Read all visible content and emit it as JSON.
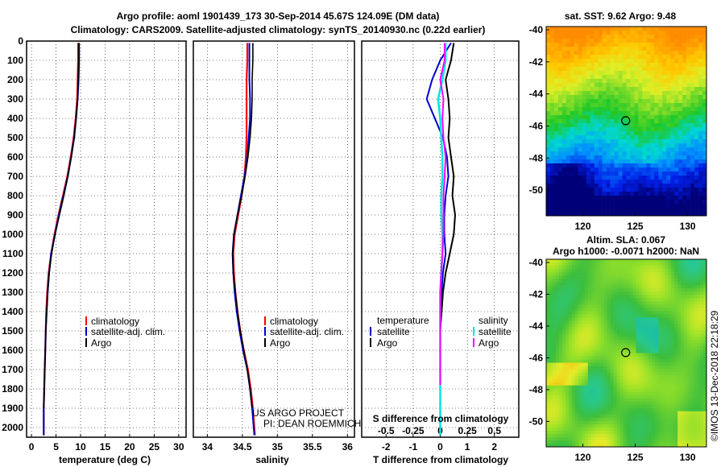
{
  "header": {
    "line1": "Argo profile: aoml 1901439_173 30-Sep-2014 45.67S 124.09E (DM data)",
    "line2": "Climatology: CARS2009. Satellite-adjusted climatology: synTS_20140930.nc (0.22d earlier)"
  },
  "credit": {
    "line1": "US ARGO PROJECT",
    "line2": "PI: DEAN ROEMMICH",
    "imos": "©IMOS 13-Dec-2018 22:18:29"
  },
  "colors": {
    "climatology": "#ff0000",
    "satellite": "#0000cc",
    "argo": "#000000",
    "cyan": "#00e5e5",
    "magenta": "#ff00ff"
  },
  "chart_data": [
    {
      "type": "line",
      "xlabel": "temperature (deg C)",
      "xlim": [
        -1,
        31.5
      ],
      "xticks": [
        "0",
        "5",
        "10",
        "15",
        "20",
        "25",
        "30"
      ],
      "ylim": [
        2050,
        0
      ],
      "yticks": [
        "0",
        "100",
        "200",
        "300",
        "400",
        "500",
        "600",
        "700",
        "800",
        "900",
        "1000",
        "1100",
        "1200",
        "1300",
        "1400",
        "1500",
        "1600",
        "1700",
        "1800",
        "1900",
        "2000"
      ],
      "legend": [
        "climatology",
        "satellite-adj. clim.",
        "Argo"
      ],
      "series": [
        {
          "name": "climatology",
          "x": [
            9.5,
            9.5,
            9.4,
            9.3,
            9.0,
            8.6,
            8.0,
            7.3,
            6.4,
            5.5,
            4.7,
            4.0,
            3.5,
            3.2,
            3.0,
            2.9,
            2.8,
            2.7,
            2.6,
            2.5,
            2.5
          ],
          "y": [
            10,
            100,
            200,
            300,
            400,
            500,
            600,
            700,
            800,
            900,
            1000,
            1100,
            1200,
            1300,
            1400,
            1500,
            1600,
            1700,
            1800,
            1900,
            2040
          ]
        },
        {
          "name": "satellite-adj. clim.",
          "x": [
            9.7,
            9.7,
            9.6,
            9.4,
            9.1,
            8.7,
            8.1,
            7.4,
            6.5,
            5.6,
            4.8,
            4.0,
            3.6,
            3.3,
            3.1,
            2.9,
            2.8,
            2.7,
            2.6,
            2.5,
            2.5
          ],
          "y": [
            10,
            100,
            200,
            300,
            400,
            500,
            600,
            700,
            800,
            900,
            1000,
            1100,
            1200,
            1300,
            1400,
            1500,
            1600,
            1700,
            1800,
            1900,
            2040
          ]
        },
        {
          "name": "Argo",
          "x": [
            9.6,
            9.6,
            9.5,
            9.4,
            9.1,
            8.7,
            8.1,
            7.4,
            6.6,
            5.7,
            4.8,
            4.1,
            3.6,
            3.3,
            3.1,
            2.9,
            2.8,
            2.7,
            2.6,
            2.5
          ],
          "y": [
            10,
            100,
            200,
            300,
            400,
            500,
            600,
            700,
            800,
            900,
            1000,
            1100,
            1200,
            1300,
            1400,
            1500,
            1600,
            1700,
            1800,
            1900
          ]
        }
      ]
    },
    {
      "type": "line",
      "xlabel": "salinity",
      "xlim": [
        33.8,
        36.1
      ],
      "xticks": [
        "34",
        "34.5",
        "35",
        "35.5",
        "36"
      ],
      "ylim": [
        2050,
        0
      ],
      "legend": [
        "climatology",
        "satellite-adj. clim.",
        "Argo"
      ],
      "series": [
        {
          "name": "climatology",
          "x": [
            34.57,
            34.57,
            34.56,
            34.56,
            34.56,
            34.56,
            34.55,
            34.53,
            34.49,
            34.44,
            34.39,
            34.37,
            34.38,
            34.4,
            34.43,
            34.47,
            34.52,
            34.58,
            34.62,
            34.65,
            34.68
          ],
          "y": [
            10,
            100,
            200,
            300,
            400,
            500,
            600,
            700,
            800,
            900,
            1000,
            1100,
            1200,
            1300,
            1400,
            1500,
            1600,
            1700,
            1800,
            1900,
            2040
          ]
        },
        {
          "name": "satellite-adj. clim.",
          "x": [
            34.6,
            34.6,
            34.6,
            34.61,
            34.61,
            34.59,
            34.57,
            34.53,
            34.48,
            34.43,
            34.38,
            34.36,
            34.37,
            34.39,
            34.42,
            34.46,
            34.51,
            34.57,
            34.61,
            34.64,
            34.67
          ],
          "y": [
            10,
            100,
            200,
            300,
            400,
            500,
            600,
            700,
            800,
            900,
            1000,
            1100,
            1200,
            1300,
            1400,
            1500,
            1600,
            1700,
            1800,
            1900,
            2040
          ]
        },
        {
          "name": "Argo",
          "x": [
            34.65,
            34.65,
            34.64,
            34.64,
            34.63,
            34.61,
            34.58,
            34.54,
            34.49,
            34.43,
            34.38,
            34.36,
            34.37,
            34.4,
            34.43,
            34.47,
            34.52,
            34.57,
            34.61,
            34.64
          ],
          "y": [
            10,
            100,
            200,
            300,
            400,
            500,
            600,
            700,
            800,
            900,
            1000,
            1100,
            1200,
            1300,
            1400,
            1500,
            1600,
            1700,
            1800,
            1900
          ]
        }
      ]
    },
    {
      "type": "line",
      "xlabel": "T difference from climatology",
      "xlabel_top": "S difference from climatology",
      "xlim": [
        -2.9,
        2.9
      ],
      "xticks": [
        "-2",
        "-1",
        "0",
        "1",
        "2"
      ],
      "sticks": [
        "-0.5",
        "-0.25",
        "0",
        "0.25",
        "0.5"
      ],
      "ylim": [
        2050,
        0
      ],
      "legend_t_title": "temperature",
      "legend_s_title": "salinity",
      "legend_labels": [
        "satellite",
        "Argo"
      ],
      "series": [
        {
          "name": "temperature satellite",
          "x": [
            0.4,
            0.0,
            -0.3,
            -0.5,
            -0.2,
            0.1,
            0.25,
            0.3,
            0.2,
            0.15,
            0.15,
            0.2,
            0.1,
            0.05,
            0.0,
            0.0,
            0.0,
            0.0,
            0.0,
            0.0
          ],
          "y": [
            10,
            100,
            200,
            300,
            400,
            500,
            600,
            700,
            800,
            900,
            1000,
            1100,
            1200,
            1300,
            1400,
            1500,
            1600,
            1700,
            1800,
            2000
          ]
        },
        {
          "name": "temperature Argo",
          "x": [
            0.5,
            0.4,
            0.2,
            0.3,
            0.35,
            0.3,
            0.4,
            0.5,
            0.45,
            0.55,
            0.5,
            0.35,
            0.2,
            0.1,
            0.05,
            0.0,
            0.0,
            0.0,
            0.0
          ],
          "y": [
            10,
            100,
            200,
            300,
            400,
            500,
            600,
            700,
            800,
            900,
            1000,
            1100,
            1200,
            1300,
            1400,
            1500,
            1600,
            1700,
            1830
          ]
        },
        {
          "name": "salinity satellite",
          "x": [
            0.05,
            0.05,
            0.02,
            -0.02,
            0.0,
            0.01,
            0.02,
            0.02,
            0.01,
            0.01,
            0.02,
            0.02,
            0.01,
            0.0,
            0.0,
            0.0,
            0.0,
            0.0,
            0.0,
            0.0
          ],
          "y": [
            10,
            100,
            200,
            300,
            400,
            500,
            600,
            700,
            800,
            900,
            1000,
            1100,
            1200,
            1300,
            1400,
            1500,
            1600,
            1700,
            1800,
            2040
          ]
        },
        {
          "name": "salinity Argo",
          "x": [
            0.04,
            0.04,
            0.0,
            0.03,
            0.02,
            0.03,
            0.05,
            0.04,
            0.03,
            0.03,
            0.03,
            0.02,
            0.01,
            0.0,
            0.0,
            0.0,
            0.0,
            0.0,
            0.0
          ],
          "y": [
            10,
            100,
            200,
            300,
            400,
            500,
            600,
            700,
            800,
            900,
            1000,
            1100,
            1200,
            1300,
            1400,
            1500,
            1600,
            1700,
            1780
          ]
        }
      ]
    },
    {
      "type": "heatmap",
      "title": "sat. SST: 9.62 Argo: 9.48",
      "xticks": [
        "120",
        "125",
        "130"
      ],
      "yticks": [
        "-40",
        "-42",
        "-44",
        "-46",
        "-48",
        "-50"
      ],
      "xlim": [
        116.5,
        131.8
      ],
      "ylim": [
        -51.6,
        -39.8
      ],
      "marker": {
        "lon": 124.09,
        "lat": -45.67
      }
    },
    {
      "type": "heatmap",
      "title": "Altim. SLA: 0.067",
      "subtitle": "Argo h1000: -0.0071 h2000: NaN",
      "xticks": [
        "120",
        "125",
        "130"
      ],
      "yticks": [
        "-40",
        "-42",
        "-44",
        "-46",
        "-48",
        "-50"
      ],
      "xlim": [
        116.5,
        131.8
      ],
      "ylim": [
        -51.6,
        -39.8
      ],
      "marker": {
        "lon": 124.09,
        "lat": -45.67
      }
    }
  ]
}
